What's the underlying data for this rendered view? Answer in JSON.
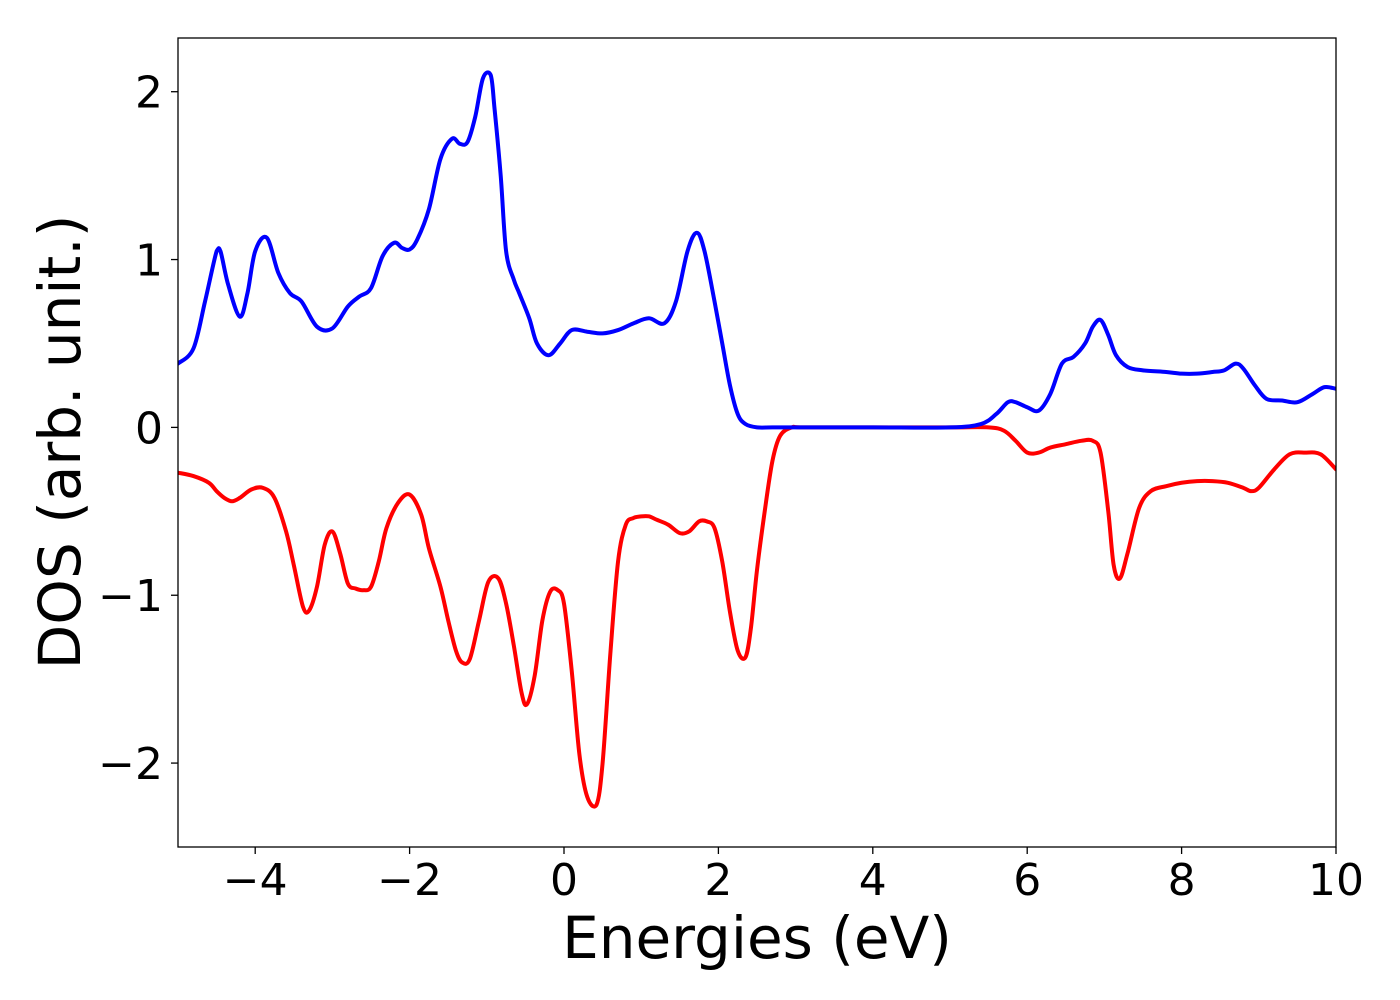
{
  "chart_data": {
    "type": "line",
    "title": "",
    "xlabel": "Energies (eV)",
    "ylabel": "DOS (arb. unit.)",
    "xlim": [
      -5,
      10
    ],
    "ylim": [
      -2.5,
      2.32
    ],
    "grid": false,
    "xticks": [
      -4,
      -2,
      0,
      2,
      4,
      6,
      8,
      10
    ],
    "xtick_labels": [
      "−4",
      "−2",
      "0",
      "2",
      "4",
      "6",
      "8",
      "10"
    ],
    "yticks": [
      -2,
      -1,
      0,
      1,
      2
    ],
    "ytick_labels": [
      "−2",
      "−1",
      "0",
      "1",
      "2"
    ],
    "series": [
      {
        "color": "#0000ff",
        "x": [
          -5.0,
          -4.8,
          -4.65,
          -4.5,
          -4.45,
          -4.35,
          -4.2,
          -4.1,
          -4.0,
          -3.85,
          -3.7,
          -3.55,
          -3.4,
          -3.2,
          -3.0,
          -2.8,
          -2.65,
          -2.5,
          -2.35,
          -2.2,
          -2.1,
          -2.0,
          -1.9,
          -1.75,
          -1.6,
          -1.45,
          -1.35,
          -1.25,
          -1.15,
          -1.05,
          -0.95,
          -0.9,
          -0.82,
          -0.75,
          -0.65,
          -0.58,
          -0.45,
          -0.35,
          -0.2,
          -0.05,
          0.1,
          0.3,
          0.5,
          0.7,
          0.9,
          1.1,
          1.3,
          1.45,
          1.6,
          1.72,
          1.82,
          1.95,
          2.05,
          2.15,
          2.25,
          2.35,
          2.5,
          2.7,
          3.0,
          4.0,
          5.0,
          5.4,
          5.6,
          5.75,
          5.85,
          6.0,
          6.15,
          6.3,
          6.45,
          6.6,
          6.75,
          6.85,
          6.95,
          7.05,
          7.15,
          7.3,
          7.5,
          7.8,
          8.0,
          8.2,
          8.4,
          8.55,
          8.7,
          8.8,
          8.95,
          9.1,
          9.3,
          9.5,
          9.7,
          9.85,
          10.0
        ],
        "y": [
          0.38,
          0.47,
          0.75,
          1.05,
          1.05,
          0.85,
          0.66,
          0.8,
          1.05,
          1.13,
          0.92,
          0.8,
          0.75,
          0.6,
          0.59,
          0.72,
          0.78,
          0.83,
          1.02,
          1.1,
          1.07,
          1.06,
          1.12,
          1.3,
          1.6,
          1.72,
          1.69,
          1.7,
          1.85,
          2.08,
          2.1,
          1.9,
          1.5,
          1.05,
          0.88,
          0.8,
          0.65,
          0.5,
          0.43,
          0.5,
          0.58,
          0.57,
          0.56,
          0.58,
          0.62,
          0.65,
          0.62,
          0.75,
          1.05,
          1.16,
          1.05,
          0.75,
          0.5,
          0.25,
          0.08,
          0.02,
          0.0,
          0.0,
          0.0,
          0.0,
          0.0,
          0.02,
          0.08,
          0.15,
          0.15,
          0.12,
          0.1,
          0.2,
          0.38,
          0.42,
          0.5,
          0.6,
          0.64,
          0.55,
          0.43,
          0.36,
          0.34,
          0.33,
          0.32,
          0.32,
          0.33,
          0.34,
          0.38,
          0.35,
          0.25,
          0.17,
          0.16,
          0.15,
          0.2,
          0.24,
          0.23
        ]
      },
      {
        "color": "#ff0000",
        "x": [
          -5.0,
          -4.8,
          -4.6,
          -4.5,
          -4.4,
          -4.3,
          -4.2,
          -4.05,
          -3.9,
          -3.75,
          -3.6,
          -3.5,
          -3.38,
          -3.3,
          -3.2,
          -3.1,
          -3.0,
          -2.9,
          -2.8,
          -2.7,
          -2.6,
          -2.5,
          -2.4,
          -2.3,
          -2.15,
          -2.0,
          -1.85,
          -1.75,
          -1.6,
          -1.5,
          -1.4,
          -1.32,
          -1.22,
          -1.1,
          -0.98,
          -0.85,
          -0.75,
          -0.65,
          -0.55,
          -0.48,
          -0.38,
          -0.28,
          -0.18,
          -0.08,
          0.0,
          0.1,
          0.2,
          0.3,
          0.42,
          0.5,
          0.6,
          0.7,
          0.8,
          0.9,
          1.0,
          1.1,
          1.2,
          1.35,
          1.5,
          1.62,
          1.75,
          1.85,
          1.95,
          2.05,
          2.15,
          2.25,
          2.35,
          2.42,
          2.5,
          2.6,
          2.7,
          2.8,
          2.95,
          3.1,
          4.0,
          5.0,
          5.5,
          5.7,
          5.85,
          6.0,
          6.15,
          6.3,
          6.5,
          6.7,
          6.85,
          6.95,
          7.05,
          7.12,
          7.2,
          7.3,
          7.45,
          7.6,
          7.8,
          8.0,
          8.2,
          8.4,
          8.6,
          8.8,
          8.9,
          9.0,
          9.2,
          9.4,
          9.6,
          9.8,
          10.0
        ],
        "y": [
          -0.27,
          -0.29,
          -0.33,
          -0.38,
          -0.42,
          -0.44,
          -0.42,
          -0.37,
          -0.36,
          -0.42,
          -0.62,
          -0.82,
          -1.07,
          -1.09,
          -0.95,
          -0.7,
          -0.62,
          -0.75,
          -0.93,
          -0.96,
          -0.97,
          -0.95,
          -0.8,
          -0.6,
          -0.45,
          -0.4,
          -0.52,
          -0.72,
          -0.95,
          -1.15,
          -1.33,
          -1.4,
          -1.38,
          -1.15,
          -0.92,
          -0.9,
          -1.05,
          -1.3,
          -1.58,
          -1.65,
          -1.48,
          -1.15,
          -0.98,
          -0.97,
          -1.05,
          -1.45,
          -1.95,
          -2.2,
          -2.25,
          -2.0,
          -1.35,
          -0.8,
          -0.58,
          -0.54,
          -0.53,
          -0.53,
          -0.55,
          -0.58,
          -0.63,
          -0.62,
          -0.56,
          -0.56,
          -0.6,
          -0.8,
          -1.1,
          -1.33,
          -1.37,
          -1.2,
          -0.85,
          -0.5,
          -0.2,
          -0.05,
          0.0,
          0.0,
          0.0,
          0.0,
          0.0,
          -0.02,
          -0.08,
          -0.15,
          -0.15,
          -0.12,
          -0.1,
          -0.08,
          -0.08,
          -0.15,
          -0.5,
          -0.82,
          -0.9,
          -0.75,
          -0.48,
          -0.38,
          -0.35,
          -0.33,
          -0.32,
          -0.32,
          -0.33,
          -0.36,
          -0.38,
          -0.36,
          -0.25,
          -0.16,
          -0.15,
          -0.16,
          -0.25
        ]
      }
    ]
  }
}
